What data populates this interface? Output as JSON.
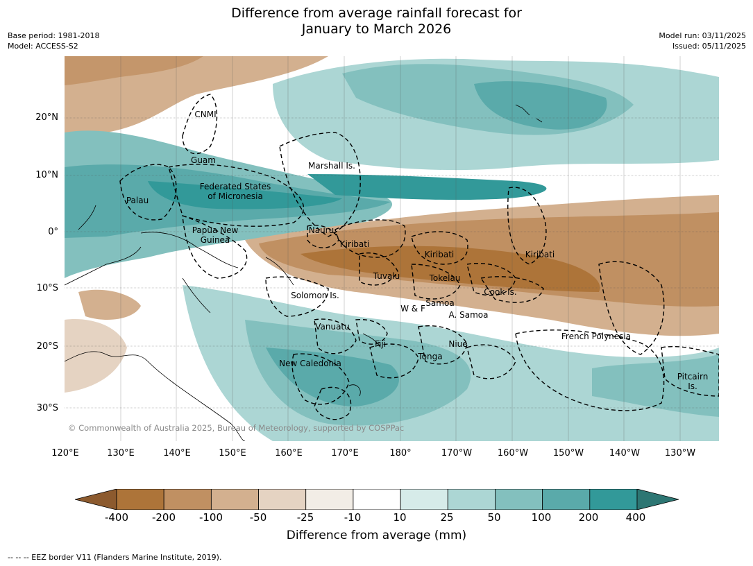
{
  "title_line1": "Difference from average rainfall forecast for",
  "title_line2": "January to March 2026",
  "meta": {
    "base_period": "Base period: 1981-2018",
    "model": "Model: ACCESS-S2",
    "model_run": "Model run: 03/11/2025",
    "issued": "Issued: 05/11/2025"
  },
  "map": {
    "lat_ticks": [
      "20°N",
      "10°N",
      "0°",
      "10°S",
      "20°S",
      "30°S"
    ],
    "lon_ticks": [
      "120°E",
      "130°E",
      "140°E",
      "150°E",
      "160°E",
      "170°E",
      "180°",
      "170°W",
      "160°W",
      "150°W",
      "140°W",
      "130°W"
    ],
    "regions": [
      "CNMI",
      "Guam",
      "Marshall Is.",
      "Palau",
      "Federated States\nof Micronesia",
      "Papua New\nGuinea",
      "Nauru",
      "Kiribati",
      "Kiribati",
      "Kiribati",
      "Tuvalu",
      "Tokelau",
      "Cook Is.",
      "Solomon Is.",
      "Samoa",
      "W & F",
      "A. Samoa",
      "Vanuatu",
      "Fiji",
      "Niue",
      "Tonga",
      "New Caledonia",
      "French Polynesia",
      "Pitcairn\nIs."
    ],
    "copyright": "© Commonwealth of Australia 2025, Bureau of Meteorology, supported by COSPPac"
  },
  "colorbar": {
    "labels": [
      "-400",
      "-200",
      "-100",
      "-50",
      "-25",
      "-10",
      "10",
      "25",
      "50",
      "100",
      "200",
      "400"
    ],
    "colors": [
      "#8c5a2e",
      "#ad7439",
      "#c09062",
      "#d3b08f",
      "#e5d3c2",
      "#f2ede6",
      "#ffffff",
      "#d6ebe9",
      "#acd6d4",
      "#83c0be",
      "#5aaaaa",
      "#329999",
      "#2d7673"
    ],
    "title": "Difference from average (mm)"
  },
  "footnote": "--  --  -- EEZ border V11 (Flanders Marine Institute, 2019)."
}
